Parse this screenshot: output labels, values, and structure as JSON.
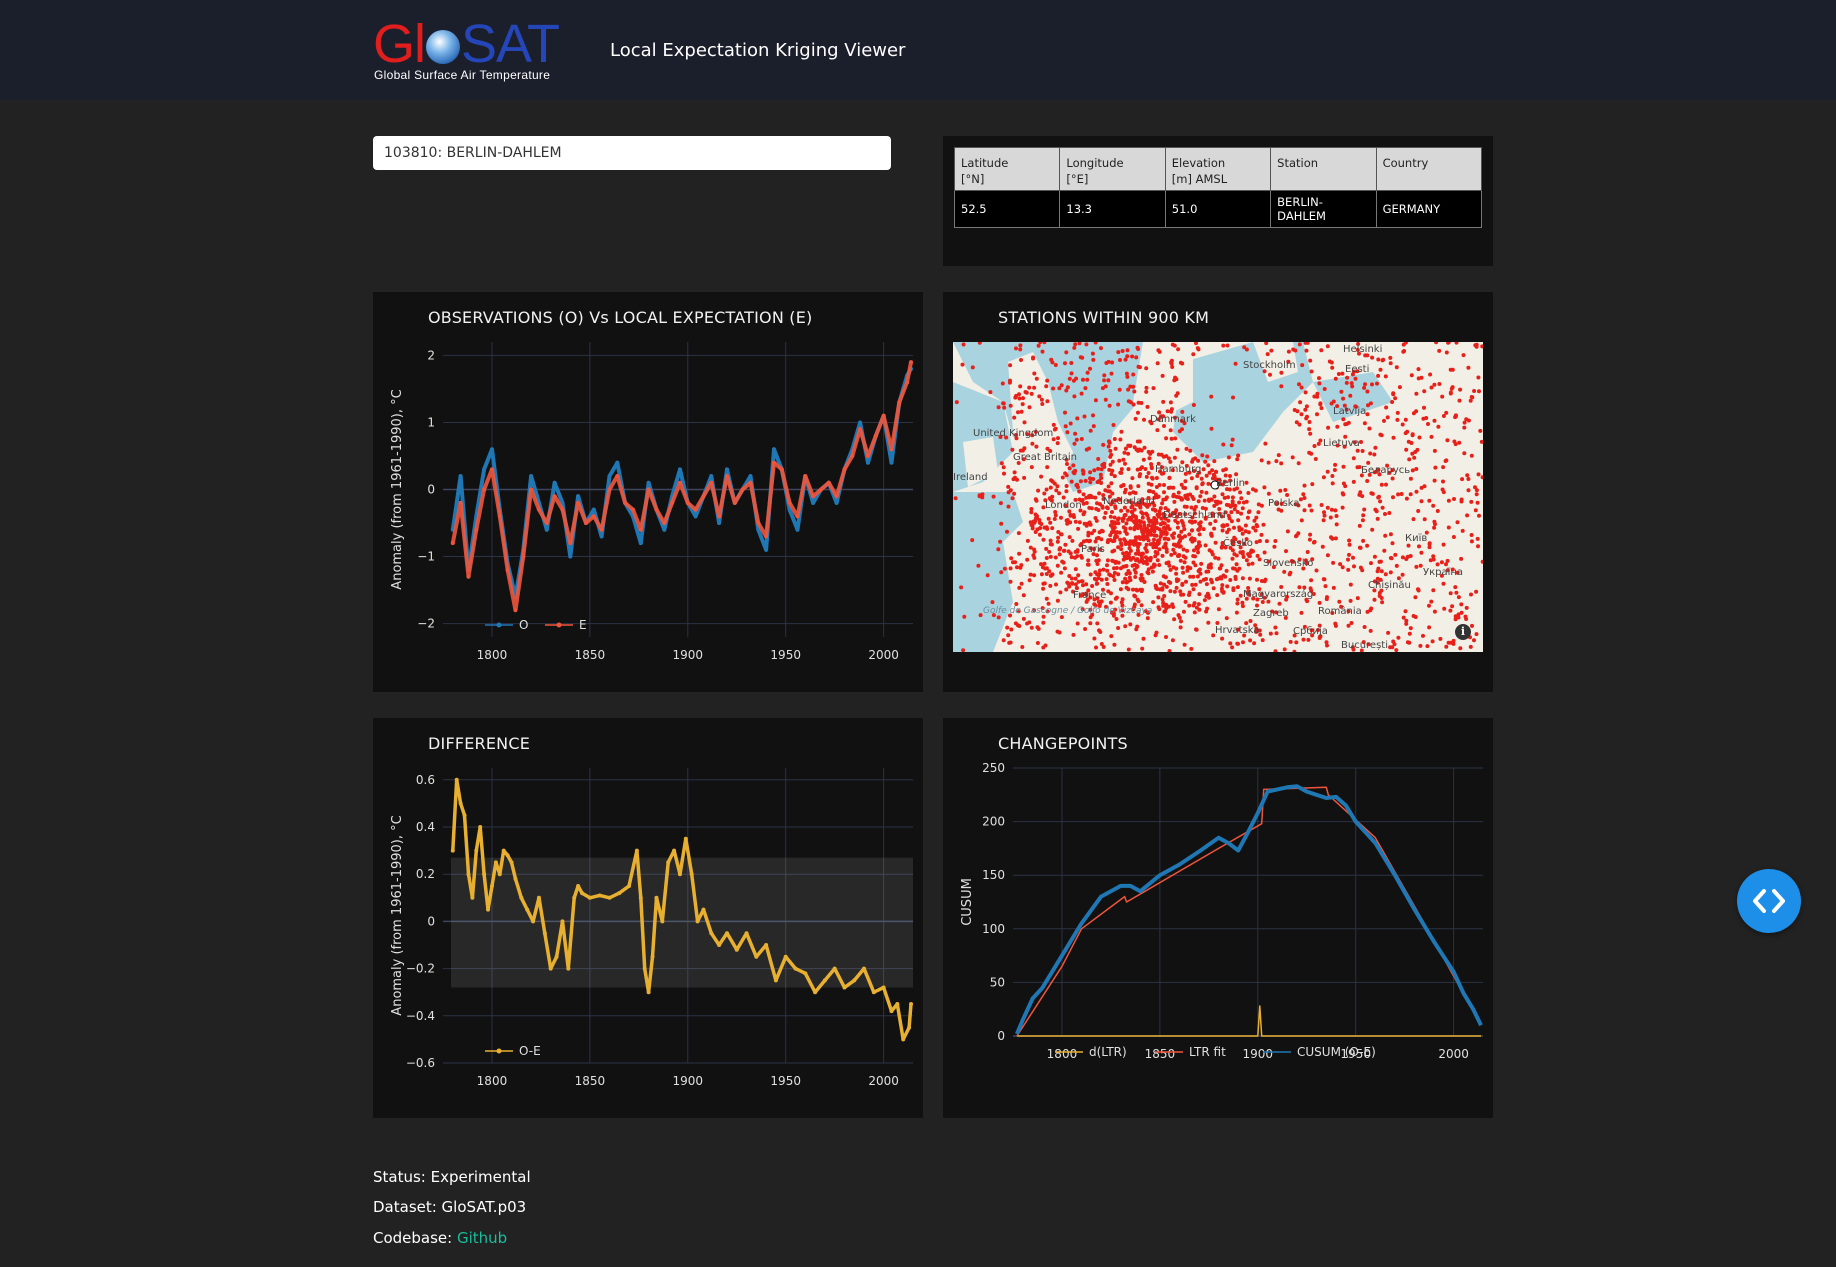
{
  "header": {
    "logo_main_left": "Gl",
    "logo_main_right": "SAT",
    "logo_subtitle": "Global Surface Air Temperature",
    "title": "Local Expectation Kriging Viewer"
  },
  "station_select": {
    "value": "103810: BERLIN-DAHLEM"
  },
  "station_table": {
    "headers": [
      "Latitude\n [°N]",
      "Longitude\n [°E]",
      "Elevation\n [m] AMSL",
      "Station",
      "Country"
    ],
    "row": [
      "52.5",
      "13.3",
      "51.0",
      "BERLIN-DAHLEM",
      "GERMANY"
    ]
  },
  "cards": {
    "obs": {
      "title": "OBSERVATIONS (O) Vs LOCAL EXPECTATION (E)"
    },
    "map": {
      "title": "STATIONS WITHIN 900 KM"
    },
    "diff": {
      "title": "DIFFERENCE"
    },
    "cp": {
      "title": "CHANGEPOINTS"
    }
  },
  "map": {
    "labels": [
      {
        "text": "Helsinki"
      },
      {
        "text": "Stockholm"
      },
      {
        "text": "Eesti"
      },
      {
        "text": "Latvija"
      },
      {
        "text": "Lietuva"
      },
      {
        "text": "Danmark"
      },
      {
        "text": "United Kingdom"
      },
      {
        "text": "Great Britain"
      },
      {
        "text": "Ireland"
      },
      {
        "text": "Hamburg"
      },
      {
        "text": "Berlin"
      },
      {
        "text": "Беларусь"
      },
      {
        "text": "London"
      },
      {
        "text": "Nederland"
      },
      {
        "text": "Polska"
      },
      {
        "text": "Deutschland"
      },
      {
        "text": "Київ"
      },
      {
        "text": "Paris"
      },
      {
        "text": "Česko"
      },
      {
        "text": "Slovensko"
      },
      {
        "text": "Україна"
      },
      {
        "text": "Chișinău"
      },
      {
        "text": "France"
      },
      {
        "text": "Magyarország"
      },
      {
        "text": "Golfe de Gascogne / Golfo de Vizcaya"
      },
      {
        "text": "Zagreb"
      },
      {
        "text": "România"
      },
      {
        "text": "Hrvatska"
      },
      {
        "text": "Србија"
      },
      {
        "text": "București"
      }
    ],
    "attribution_icon": "info-icon"
  },
  "chart_data": [
    {
      "type": "line",
      "title": "OBSERVATIONS (O) Vs LOCAL EXPECTATION (E)",
      "ylabel": "Anomaly (from 1961-1990), °C",
      "xlim": [
        1775,
        2015
      ],
      "ylim": [
        -2.2,
        2.2
      ],
      "xticks": [
        1800,
        1850,
        1900,
        1950,
        2000
      ],
      "yticks": [
        -2,
        -1,
        0,
        1,
        2
      ],
      "ytick_labels": [
        "−2",
        "−1",
        "0",
        "1",
        "2"
      ],
      "grid": true,
      "legend_position": "bottom-left",
      "series": [
        {
          "name": "O",
          "color": "#1f77b4",
          "x": [
            1780,
            1784,
            1788,
            1792,
            1796,
            1800,
            1804,
            1808,
            1812,
            1816,
            1820,
            1824,
            1828,
            1832,
            1836,
            1840,
            1844,
            1848,
            1852,
            1856,
            1860,
            1864,
            1868,
            1872,
            1876,
            1880,
            1884,
            1888,
            1892,
            1896,
            1900,
            1904,
            1908,
            1912,
            1916,
            1920,
            1924,
            1928,
            1932,
            1936,
            1940,
            1944,
            1948,
            1952,
            1956,
            1960,
            1964,
            1968,
            1972,
            1976,
            1980,
            1984,
            1988,
            1992,
            1996,
            2000,
            2004,
            2008,
            2012,
            2014
          ],
          "y": [
            -0.6,
            0.2,
            -1.2,
            -0.4,
            0.3,
            0.6,
            -0.3,
            -1.1,
            -1.6,
            -0.9,
            0.2,
            -0.2,
            -0.6,
            0.1,
            -0.2,
            -1.0,
            -0.1,
            -0.5,
            -0.3,
            -0.7,
            0.2,
            0.4,
            -0.2,
            -0.4,
            -0.8,
            0.1,
            -0.3,
            -0.6,
            -0.1,
            0.3,
            -0.2,
            -0.4,
            -0.1,
            0.2,
            -0.5,
            0.3,
            -0.2,
            0.0,
            0.2,
            -0.6,
            -0.9,
            0.6,
            0.3,
            -0.3,
            -0.6,
            0.2,
            -0.2,
            0.0,
            0.1,
            -0.2,
            0.3,
            0.6,
            1.0,
            0.4,
            0.8,
            1.1,
            0.4,
            1.3,
            1.7,
            1.8
          ]
        },
        {
          "name": "E",
          "color": "#ef553b",
          "x": [
            1780,
            1784,
            1788,
            1792,
            1796,
            1800,
            1804,
            1808,
            1812,
            1816,
            1820,
            1824,
            1828,
            1832,
            1836,
            1840,
            1844,
            1848,
            1852,
            1856,
            1860,
            1864,
            1868,
            1872,
            1876,
            1880,
            1884,
            1888,
            1892,
            1896,
            1900,
            1904,
            1908,
            1912,
            1916,
            1920,
            1924,
            1928,
            1932,
            1936,
            1940,
            1944,
            1948,
            1952,
            1956,
            1960,
            1964,
            1968,
            1972,
            1976,
            1980,
            1984,
            1988,
            1992,
            1996,
            2000,
            2004,
            2008,
            2012,
            2014
          ],
          "y": [
            -0.8,
            -0.2,
            -1.3,
            -0.6,
            0.0,
            0.3,
            -0.4,
            -1.2,
            -1.8,
            -1.0,
            0.0,
            -0.3,
            -0.5,
            -0.1,
            -0.3,
            -0.8,
            -0.2,
            -0.5,
            -0.4,
            -0.6,
            0.0,
            0.2,
            -0.2,
            -0.3,
            -0.6,
            0.0,
            -0.3,
            -0.5,
            -0.2,
            0.1,
            -0.2,
            -0.3,
            -0.1,
            0.1,
            -0.4,
            0.2,
            -0.2,
            0.0,
            0.1,
            -0.5,
            -0.7,
            0.4,
            0.3,
            -0.2,
            -0.4,
            0.2,
            -0.1,
            0.0,
            0.1,
            -0.1,
            0.3,
            0.5,
            0.9,
            0.5,
            0.8,
            1.1,
            0.6,
            1.3,
            1.6,
            1.9
          ]
        }
      ]
    },
    {
      "type": "line",
      "title": "DIFFERENCE",
      "ylabel": "Anomaly (from 1961-1990), °C",
      "xlim": [
        1775,
        2015
      ],
      "ylim": [
        -0.6,
        0.65
      ],
      "xticks": [
        1800,
        1850,
        1900,
        1950,
        2000
      ],
      "yticks": [
        -0.6,
        -0.4,
        -0.2,
        0,
        0.2,
        0.4,
        0.6
      ],
      "ytick_labels": [
        "−0.6",
        "−0.4",
        "−0.2",
        "0",
        "0.2",
        "0.4",
        "0.6"
      ],
      "grid": true,
      "legend_position": "bottom-left",
      "band": {
        "upper": 0.27,
        "lower": -0.28
      },
      "series": [
        {
          "name": "O-E",
          "color": "#e8b030",
          "x": [
            1780,
            1782,
            1784,
            1786,
            1788,
            1790,
            1792,
            1794,
            1796,
            1798,
            1800,
            1802,
            1804,
            1806,
            1808,
            1810,
            1812,
            1815,
            1818,
            1821,
            1824,
            1827,
            1830,
            1833,
            1836,
            1839,
            1842,
            1844,
            1846,
            1850,
            1855,
            1860,
            1865,
            1870,
            1874,
            1876,
            1878,
            1880,
            1882,
            1884,
            1887,
            1890,
            1893,
            1896,
            1899,
            1902,
            1905,
            1908,
            1912,
            1916,
            1920,
            1925,
            1930,
            1935,
            1940,
            1945,
            1950,
            1955,
            1960,
            1965,
            1970,
            1975,
            1980,
            1985,
            1990,
            1995,
            2000,
            2004,
            2007,
            2010,
            2013,
            2014
          ],
          "y": [
            0.3,
            0.6,
            0.5,
            0.45,
            0.2,
            0.1,
            0.3,
            0.4,
            0.2,
            0.05,
            0.15,
            0.25,
            0.2,
            0.3,
            0.28,
            0.25,
            0.18,
            0.1,
            0.05,
            0.0,
            0.1,
            -0.05,
            -0.2,
            -0.15,
            0.0,
            -0.2,
            0.1,
            0.15,
            0.12,
            0.1,
            0.11,
            0.1,
            0.12,
            0.15,
            0.3,
            0.1,
            -0.2,
            -0.3,
            -0.15,
            0.1,
            0.0,
            0.25,
            0.3,
            0.2,
            0.35,
            0.2,
            0.0,
            0.05,
            -0.05,
            -0.1,
            -0.05,
            -0.12,
            -0.05,
            -0.15,
            -0.1,
            -0.25,
            -0.15,
            -0.2,
            -0.22,
            -0.3,
            -0.25,
            -0.2,
            -0.28,
            -0.25,
            -0.2,
            -0.3,
            -0.28,
            -0.38,
            -0.35,
            -0.5,
            -0.45,
            -0.35
          ]
        }
      ]
    },
    {
      "type": "line",
      "title": "CHANGEPOINTS",
      "ylabel": "CUSUM",
      "xlim": [
        1775,
        2015
      ],
      "ylim": [
        0,
        250
      ],
      "xticks": [
        1800,
        1850,
        1900,
        1950,
        2000
      ],
      "yticks": [
        0,
        50,
        100,
        150,
        200,
        250
      ],
      "ytick_labels": [
        "0",
        "50",
        "100",
        "150",
        "200",
        "250"
      ],
      "grid": true,
      "legend_position": "bottom-left",
      "series": [
        {
          "name": "d(LTR)",
          "color": "#e8b030",
          "x": [
            1777,
            1900,
            1901,
            1902,
            2014
          ],
          "y": [
            0,
            0,
            28,
            0,
            0
          ]
        },
        {
          "name": "LTR fit",
          "color": "#ef553b",
          "x": [
            1777,
            1800,
            1810,
            1832,
            1833,
            1880,
            1902,
            1903,
            1935,
            1936,
            1960,
            1985,
            2014
          ],
          "y": [
            0,
            65,
            100,
            130,
            125,
            175,
            198,
            230,
            232,
            225,
            185,
            105,
            10
          ]
        },
        {
          "name": "CUSUM (O-E)",
          "color": "#1f77b4",
          "x": [
            1777,
            1780,
            1785,
            1790,
            1800,
            1810,
            1820,
            1830,
            1835,
            1840,
            1850,
            1860,
            1870,
            1880,
            1885,
            1890,
            1895,
            1900,
            1905,
            1910,
            1915,
            1920,
            1925,
            1930,
            1935,
            1940,
            1945,
            1950,
            1955,
            1960,
            1970,
            1980,
            1990,
            2000,
            2005,
            2010,
            2014
          ],
          "y": [
            2,
            15,
            35,
            45,
            75,
            105,
            130,
            140,
            140,
            135,
            150,
            160,
            172,
            185,
            180,
            173,
            190,
            208,
            228,
            230,
            232,
            233,
            228,
            225,
            222,
            223,
            215,
            200,
            190,
            180,
            150,
            118,
            88,
            60,
            40,
            25,
            10
          ]
        }
      ]
    }
  ],
  "footer": {
    "status": "Status: Experimental",
    "dataset": "Dataset: GloSAT.p03",
    "codebase_label": "Codebase: ",
    "codebase_link": "Github"
  },
  "fab": {
    "icon": "code-icon"
  }
}
